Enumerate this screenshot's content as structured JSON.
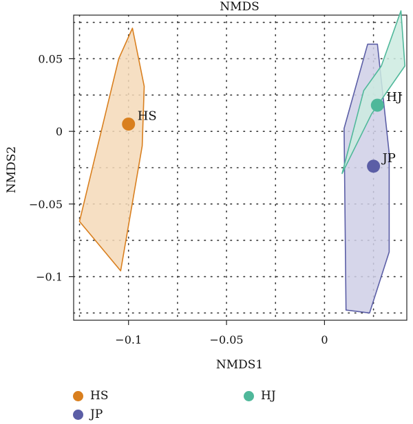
{
  "chart_data": {
    "type": "scatter",
    "title": "NMDS",
    "xlabel": "NMDS1",
    "ylabel": "NMDS2",
    "xlim": [
      -0.128,
      0.042
    ],
    "ylim": [
      -0.13,
      0.08
    ],
    "x_ticks": [
      -0.1,
      -0.05,
      0
    ],
    "x_tick_labels": [
      "−0.1",
      "−0.05",
      "0"
    ],
    "y_ticks": [
      -0.1,
      -0.05,
      0,
      0.05
    ],
    "y_tick_labels": [
      "−0.1",
      "−0.05",
      "0",
      "0.05"
    ],
    "grid": true,
    "legend_position": "bottom",
    "series": [
      {
        "name": "HS",
        "color": "#d97f1e",
        "fill": "#f5d9b8",
        "centroid": [
          -0.1,
          0.005
        ],
        "hull": [
          [
            -0.098,
            0.071
          ],
          [
            -0.105,
            0.05
          ],
          [
            -0.125,
            -0.062
          ],
          [
            -0.104,
            -0.096
          ],
          [
            -0.093,
            -0.01
          ],
          [
            -0.092,
            0.031
          ]
        ]
      },
      {
        "name": "JP",
        "color": "#5b5ea6",
        "fill": "#cfcfe6",
        "centroid": [
          0.025,
          -0.024
        ],
        "hull": [
          [
            0.022,
            0.06
          ],
          [
            0.01,
            0.002
          ],
          [
            0.011,
            -0.123
          ],
          [
            0.023,
            -0.125
          ],
          [
            0.033,
            -0.083
          ],
          [
            0.033,
            -0.015
          ],
          [
            0.027,
            0.06
          ]
        ]
      },
      {
        "name": "HJ",
        "color": "#4fb89a",
        "fill": "#cdebe0",
        "centroid": [
          0.027,
          0.018
        ],
        "hull": [
          [
            0.039,
            0.083
          ],
          [
            0.041,
            0.045
          ],
          [
            0.024,
            0.012
          ],
          [
            0.009,
            -0.029
          ],
          [
            0.02,
            0.028
          ],
          [
            0.029,
            0.045
          ]
        ]
      }
    ]
  }
}
